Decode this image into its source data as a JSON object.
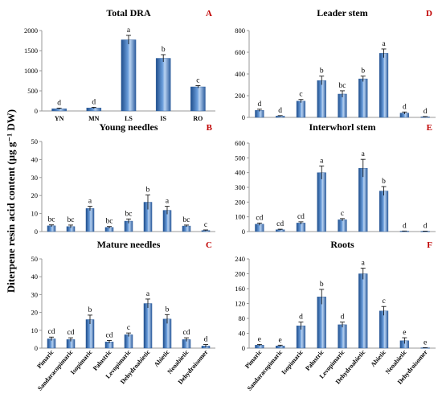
{
  "figure": {
    "ylabel": "Diterpene resin acid content (µg g⁻¹ DW)"
  },
  "chart_data": [
    {
      "type": "bar",
      "panel": "A",
      "title": "Total DRA",
      "categories": [
        "YN",
        "MN",
        "LS",
        "IS",
        "RO"
      ],
      "values": [
        55,
        75,
        1770,
        1310,
        600
      ],
      "errors": [
        15,
        15,
        110,
        90,
        30
      ],
      "labels": [
        "d",
        "d",
        "a",
        "b",
        "c"
      ],
      "ylim": [
        0,
        2000
      ],
      "yticks": [
        0,
        500,
        1000,
        1500,
        2000
      ],
      "show_xlabels": true
    },
    {
      "type": "bar",
      "panel": "D",
      "title": "Leader stem",
      "categories": [
        "Pimaric",
        "Sandaracopimaric",
        "Isopimaric",
        "Palustric",
        "Levopimaric",
        "Dehydroabietic",
        "Abietic",
        "Neoabietic",
        "Dehydroisomer"
      ],
      "values": [
        65,
        12,
        150,
        340,
        215,
        355,
        590,
        40,
        5
      ],
      "errors": [
        10,
        4,
        15,
        40,
        30,
        25,
        40,
        10,
        3
      ],
      "labels": [
        "d",
        "d",
        "c",
        "b",
        "bc",
        "b",
        "a",
        "d",
        "d"
      ],
      "ylim": [
        0,
        800
      ],
      "yticks": [
        0,
        200,
        400,
        600,
        800
      ],
      "show_xlabels": false
    },
    {
      "type": "bar",
      "panel": "B",
      "title": "Young needles",
      "categories": [
        "Pimaric",
        "Sandaracopimaric",
        "Isopimaric",
        "Palustric",
        "Levopimaric",
        "Dehydroabietic",
        "Abietic",
        "Neoabietic",
        "Dehydroisomer"
      ],
      "values": [
        3.2,
        2.8,
        12.8,
        2.3,
        5.8,
        16.3,
        11.8,
        3.1,
        0.6
      ],
      "errors": [
        0.5,
        0.8,
        1.2,
        0.5,
        1.2,
        4.0,
        2.2,
        0.5,
        0.3
      ],
      "labels": [
        "bc",
        "bc",
        "a",
        "bc",
        "bc",
        "b",
        "a",
        "bc",
        "c"
      ],
      "ylim": [
        0,
        50
      ],
      "yticks": [
        0,
        10,
        20,
        30,
        40,
        50
      ],
      "show_xlabels": false
    },
    {
      "type": "bar",
      "panel": "E",
      "title": "Interwhorl stem",
      "categories": [
        "Pimaric",
        "Sandaracopimaric",
        "Isopimaric",
        "Palustric",
        "Levopimaric",
        "Dehydroabietic",
        "Abietic",
        "Neoabietic",
        "Dehydroisomer"
      ],
      "values": [
        50,
        12,
        58,
        400,
        80,
        430,
        275,
        3,
        2
      ],
      "errors": [
        8,
        4,
        8,
        45,
        8,
        60,
        30,
        1,
        1
      ],
      "labels": [
        "cd",
        "cd",
        "cd",
        "a",
        "c",
        "a",
        "b",
        "d",
        "d"
      ],
      "ylim": [
        0,
        600
      ],
      "yticks": [
        0,
        100,
        200,
        300,
        400,
        500,
        600
      ],
      "show_xlabels": false
    },
    {
      "type": "bar",
      "panel": "C",
      "title": "Mature needles",
      "categories": [
        "Pimaric",
        "Sandaracopimaric",
        "Isopimaric",
        "Palustric",
        "Levopimaric",
        "Dehydroabietic",
        "Abietic",
        "Neoabietic",
        "Dehydroisomer"
      ],
      "values": [
        5.2,
        4.8,
        16.0,
        3.5,
        7.5,
        25.0,
        16.3,
        4.8,
        1.2
      ],
      "errors": [
        1.0,
        1.0,
        2.5,
        0.8,
        1.0,
        2.5,
        2.5,
        1.0,
        0.8
      ],
      "labels": [
        "cd",
        "cd",
        "b",
        "cd",
        "c",
        "a",
        "b",
        "cd",
        "d"
      ],
      "ylim": [
        0,
        50
      ],
      "yticks": [
        0,
        10,
        20,
        30,
        40,
        50
      ],
      "show_xlabels": true
    },
    {
      "type": "bar",
      "panel": "F",
      "title": "Roots",
      "categories": [
        "Pimaric",
        "Sandaracopimaric",
        "Isopimaric",
        "Palustric",
        "Levopimaric",
        "Dehydroabietic",
        "Abietic",
        "Neoabietic",
        "Dehydroisomer"
      ],
      "values": [
        8,
        6,
        60,
        138,
        63,
        200,
        100,
        20,
        1
      ],
      "errors": [
        2,
        2,
        10,
        20,
        7,
        15,
        12,
        8,
        0.5
      ],
      "labels": [
        "e",
        "e",
        "d",
        "b",
        "d",
        "a",
        "c",
        "e",
        "e"
      ],
      "ylim": [
        0,
        240
      ],
      "yticks": [
        0,
        40,
        80,
        120,
        160,
        200,
        240
      ],
      "show_xlabels": true
    }
  ],
  "colors": {
    "bar_dark": "#1f4e8c",
    "bar_mid": "#5b8ed2",
    "bar_light": "#c6dcf5",
    "axis": "#999999"
  }
}
